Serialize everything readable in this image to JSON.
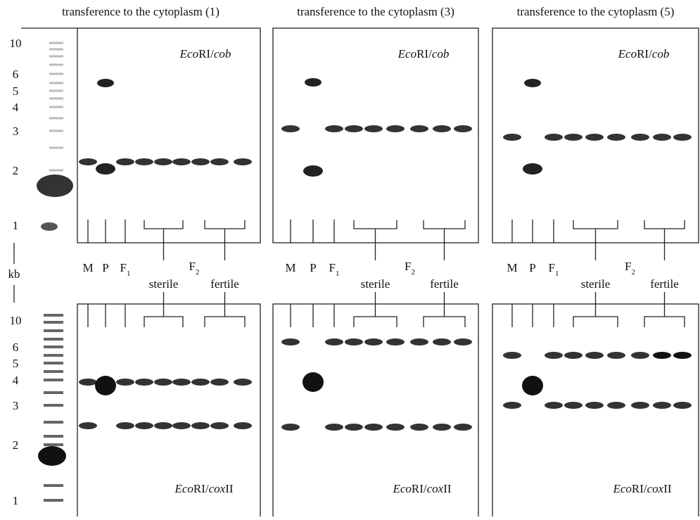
{
  "size_labels_top": [
    "10",
    "6",
    "5",
    "4",
    "3",
    "2",
    "1"
  ],
  "size_labels_bottom": [
    "10",
    "6",
    "5",
    "4",
    "3",
    "2",
    "1"
  ],
  "unit": "kb",
  "panels": [
    {
      "title": "transference to the cytoplasm (1)",
      "top_probe": [
        "Eco",
        "RI/",
        "cob"
      ],
      "bottom_probe": [
        "Eco",
        "RI/",
        "cox",
        "II"
      ],
      "lanes": {
        "m": "M",
        "p": "P",
        "f1": [
          "F",
          "1"
        ],
        "f2": [
          "F",
          "2"
        ],
        "sterile": "sterile",
        "fertile": "fertile"
      }
    },
    {
      "title": "transference to the cytoplasm (3)",
      "top_probe": [
        "Eco",
        "RI/",
        "cob"
      ],
      "bottom_probe": [
        "Eco",
        "RI/",
        "cox",
        "II"
      ],
      "lanes": {
        "m": "M",
        "p": "P",
        "f1": [
          "F",
          "1"
        ],
        "f2": [
          "F",
          "2"
        ],
        "sterile": "sterile",
        "fertile": "fertile"
      }
    },
    {
      "title": "transference to the cytoplasm (5)",
      "top_probe": [
        "Eco",
        "RI/",
        "cob"
      ],
      "bottom_probe": [
        "Eco",
        "RI/",
        "cox",
        "II"
      ],
      "lanes": {
        "m": "M",
        "p": "P",
        "f1": [
          "F",
          "1"
        ],
        "f2": [
          "F",
          "2"
        ],
        "sterile": "sterile",
        "fertile": "fertile"
      }
    }
  ]
}
